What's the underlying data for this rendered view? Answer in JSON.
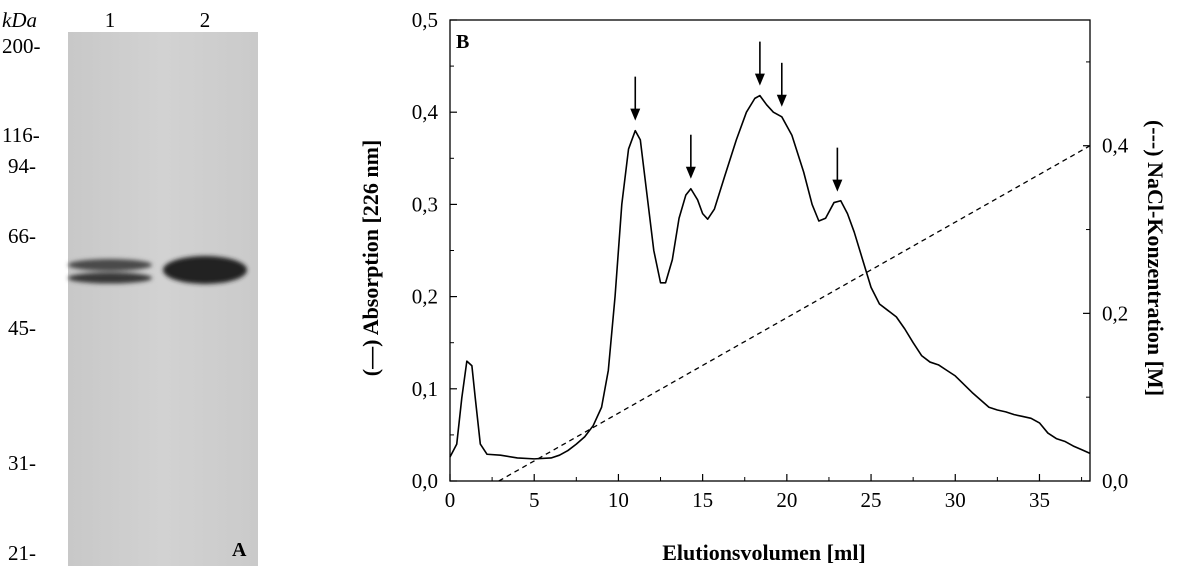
{
  "panel_a": {
    "label": "A",
    "unit_label": "kDa",
    "lanes": [
      "1",
      "2"
    ],
    "markers": [
      {
        "label": "200-",
        "kda": 200
      },
      {
        "label": "116-",
        "kda": 116
      },
      {
        "label": "94-",
        "kda": 94
      },
      {
        "label": "66-",
        "kda": 66
      },
      {
        "label": "45-",
        "kda": 45
      },
      {
        "label": "31-",
        "kda": 31
      },
      {
        "label": "21-",
        "kda": 21
      }
    ]
  },
  "chart_data": {
    "type": "line",
    "panel_label": "B",
    "xlabel": "Elutionsvolumen [ml]",
    "ylabel": "(—) Absorption [226 nm]",
    "ylabel_right": "(---) NaCl-Konzentration [M]",
    "xlim": [
      0,
      38
    ],
    "ylim": [
      0,
      0.5
    ],
    "ylim_right": [
      0,
      0.55
    ],
    "x_ticks": [
      0,
      5,
      10,
      15,
      20,
      25,
      30,
      35
    ],
    "x_tick_labels": [
      "0",
      "5",
      "10",
      "15",
      "20",
      "25",
      "30",
      "35"
    ],
    "y_ticks": [
      0,
      0.1,
      0.2,
      0.3,
      0.4,
      0.5
    ],
    "y_tick_labels": [
      "0,0",
      "0,1",
      "0,2",
      "0,3",
      "0,4",
      "0,5"
    ],
    "y_right_ticks": [
      0,
      0.2,
      0.4
    ],
    "y_right_tick_labels": [
      "0,0",
      "0,2",
      "0,4"
    ],
    "grid": false,
    "series": [
      {
        "style": "solid",
        "axis": "left",
        "points": [
          [
            0,
            0.026
          ],
          [
            0.4,
            0.04
          ],
          [
            0.7,
            0.09
          ],
          [
            1.0,
            0.13
          ],
          [
            1.3,
            0.125
          ],
          [
            1.5,
            0.09
          ],
          [
            1.8,
            0.04
          ],
          [
            2.2,
            0.029
          ],
          [
            3,
            0.028
          ],
          [
            4,
            0.025
          ],
          [
            5,
            0.024
          ],
          [
            6,
            0.025
          ],
          [
            6.5,
            0.028
          ],
          [
            7,
            0.033
          ],
          [
            7.5,
            0.04
          ],
          [
            8,
            0.048
          ],
          [
            8.5,
            0.06
          ],
          [
            9,
            0.08
          ],
          [
            9.4,
            0.12
          ],
          [
            9.8,
            0.2
          ],
          [
            10.2,
            0.3
          ],
          [
            10.6,
            0.36
          ],
          [
            11,
            0.38
          ],
          [
            11.3,
            0.37
          ],
          [
            11.7,
            0.31
          ],
          [
            12.1,
            0.25
          ],
          [
            12.5,
            0.215
          ],
          [
            12.8,
            0.215
          ],
          [
            13.2,
            0.24
          ],
          [
            13.6,
            0.285
          ],
          [
            14,
            0.31
          ],
          [
            14.3,
            0.317
          ],
          [
            14.7,
            0.305
          ],
          [
            15,
            0.29
          ],
          [
            15.3,
            0.284
          ],
          [
            15.7,
            0.295
          ],
          [
            16.3,
            0.33
          ],
          [
            17,
            0.37
          ],
          [
            17.6,
            0.4
          ],
          [
            18.1,
            0.415
          ],
          [
            18.4,
            0.418
          ],
          [
            18.8,
            0.408
          ],
          [
            19.2,
            0.4
          ],
          [
            19.7,
            0.395
          ],
          [
            20.3,
            0.375
          ],
          [
            21,
            0.335
          ],
          [
            21.5,
            0.3
          ],
          [
            21.9,
            0.282
          ],
          [
            22.3,
            0.285
          ],
          [
            22.8,
            0.302
          ],
          [
            23.2,
            0.304
          ],
          [
            23.6,
            0.29
          ],
          [
            24,
            0.27
          ],
          [
            24.5,
            0.24
          ],
          [
            25,
            0.21
          ],
          [
            25.5,
            0.192
          ],
          [
            26,
            0.185
          ],
          [
            26.5,
            0.178
          ],
          [
            27,
            0.165
          ],
          [
            27.5,
            0.15
          ],
          [
            28,
            0.136
          ],
          [
            28.5,
            0.129
          ],
          [
            29,
            0.126
          ],
          [
            29.5,
            0.12
          ],
          [
            30,
            0.114
          ],
          [
            30.5,
            0.105
          ],
          [
            31,
            0.096
          ],
          [
            31.5,
            0.088
          ],
          [
            32,
            0.08
          ],
          [
            32.5,
            0.077
          ],
          [
            33,
            0.075
          ],
          [
            33.5,
            0.072
          ],
          [
            34,
            0.07
          ],
          [
            34.5,
            0.068
          ],
          [
            35,
            0.063
          ],
          [
            35.5,
            0.052
          ],
          [
            36,
            0.046
          ],
          [
            36.5,
            0.043
          ],
          [
            37,
            0.038
          ],
          [
            37.5,
            0.034
          ],
          [
            38,
            0.03
          ]
        ]
      },
      {
        "style": "dashed",
        "axis": "right",
        "points": [
          [
            2.9,
            0.0
          ],
          [
            38,
            0.4
          ]
        ]
      }
    ],
    "annotations": [
      {
        "type": "arrow",
        "x": 11.0
      },
      {
        "type": "arrow",
        "x": 14.3
      },
      {
        "type": "arrow",
        "x": 18.4
      },
      {
        "type": "arrow",
        "x": 19.7
      },
      {
        "type": "arrow",
        "x": 23.0
      }
    ]
  }
}
